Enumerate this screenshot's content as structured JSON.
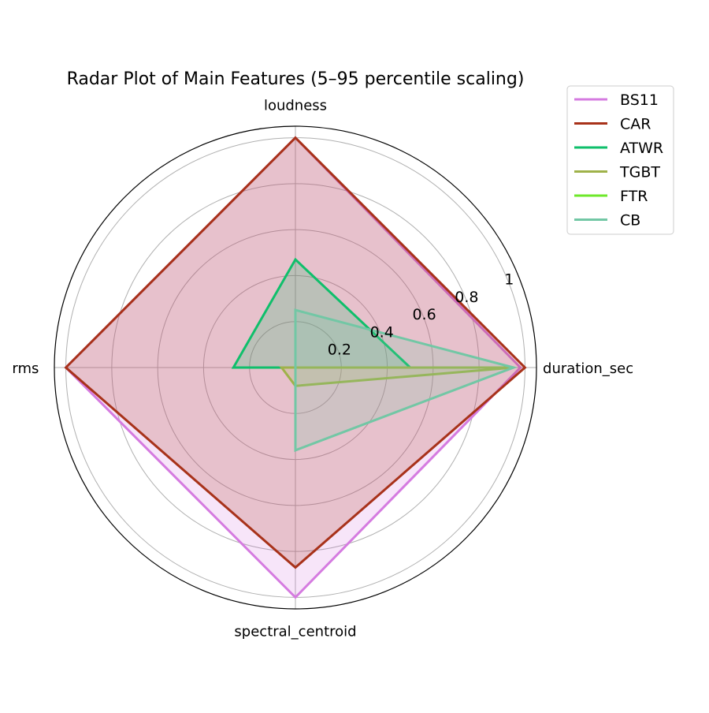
{
  "chart_data": {
    "type": "radar",
    "title": "Radar Plot of Main Features (5–95 percentile scaling)",
    "categories": [
      "duration_sec",
      "loudness",
      "rms",
      "spectral_centroid"
    ],
    "series": [
      {
        "name": "BS11",
        "color": "#d57be0",
        "values": [
          0.98,
          1.0,
          1.0,
          1.0
        ]
      },
      {
        "name": "CAR",
        "color": "#a8321a",
        "values": [
          1.0,
          1.0,
          1.0,
          0.87
        ]
      },
      {
        "name": "ATWR",
        "color": "#0fbf6b",
        "values": [
          0.5,
          0.47,
          0.27,
          0.0
        ]
      },
      {
        "name": "TGBT",
        "color": "#9fb24a",
        "values": [
          0.95,
          0.0,
          0.06,
          0.08
        ]
      },
      {
        "name": "FTR",
        "color": "#6ee82a",
        "values": [
          0.0,
          0.0,
          0.0,
          0.0
        ]
      },
      {
        "name": "CB",
        "color": "#72c7a5",
        "values": [
          0.95,
          0.25,
          0.0,
          0.36
        ]
      }
    ],
    "rlim": [
      0,
      1.05
    ],
    "rticks": [
      0.2,
      0.4,
      0.6,
      0.8,
      1.0
    ],
    "grid": true,
    "legend": "upper right"
  }
}
